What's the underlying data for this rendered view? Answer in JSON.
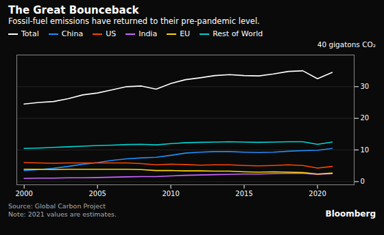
{
  "chart_data": {
    "type": "line",
    "title": "The Great Bounceback",
    "subtitle": "Fossil-fuel emissions have returned to their pre-pandemic level.",
    "ylabel": "40 gigatons CO₂",
    "annotations": [
      "Source: Global Carbon Project",
      "Note: 2021 values are estimates.",
      "Bloomberg"
    ],
    "x": [
      2000,
      2001,
      2002,
      2003,
      2004,
      2005,
      2006,
      2007,
      2008,
      2009,
      2010,
      2011,
      2012,
      2013,
      2014,
      2015,
      2016,
      2017,
      2018,
      2019,
      2020,
      2021
    ],
    "series": [
      {
        "name": "Total",
        "color": "#ffffff",
        "values": [
          24.5,
          25.0,
          25.3,
          26.2,
          27.4,
          28.0,
          29.0,
          30.0,
          30.2,
          29.2,
          31.0,
          32.2,
          32.8,
          33.5,
          33.8,
          33.5,
          33.4,
          34.0,
          34.8,
          35.0,
          32.5,
          34.5
        ]
      },
      {
        "name": "China",
        "color": "#1e90ff",
        "values": [
          3.5,
          3.8,
          4.2,
          4.8,
          5.5,
          6.0,
          6.7,
          7.2,
          7.5,
          7.7,
          8.3,
          9.0,
          9.3,
          9.5,
          9.5,
          9.3,
          9.2,
          9.3,
          9.6,
          9.8,
          9.9,
          10.5
        ]
      },
      {
        "name": "US",
        "color": "#ff4500",
        "values": [
          6.0,
          5.9,
          5.8,
          5.9,
          5.9,
          5.9,
          5.9,
          5.9,
          5.7,
          5.3,
          5.5,
          5.4,
          5.2,
          5.3,
          5.3,
          5.1,
          5.0,
          5.1,
          5.3,
          5.1,
          4.3,
          4.8
        ]
      },
      {
        "name": "India",
        "color": "#cc66ff",
        "values": [
          1.0,
          1.1,
          1.1,
          1.2,
          1.2,
          1.3,
          1.4,
          1.5,
          1.6,
          1.6,
          1.8,
          2.0,
          2.1,
          2.2,
          2.3,
          2.4,
          2.4,
          2.5,
          2.6,
          2.6,
          2.3,
          2.5
        ]
      },
      {
        "name": "EU",
        "color": "#ffd700",
        "values": [
          3.9,
          3.9,
          3.8,
          3.9,
          3.9,
          3.9,
          3.9,
          3.9,
          3.8,
          3.5,
          3.5,
          3.4,
          3.4,
          3.3,
          3.3,
          3.1,
          3.0,
          3.1,
          3.0,
          2.9,
          2.4,
          2.7
        ]
      },
      {
        "name": "Rest of World",
        "color": "#00d4d4",
        "values": [
          10.5,
          10.6,
          10.8,
          11.0,
          11.2,
          11.4,
          11.5,
          11.7,
          11.8,
          11.6,
          12.0,
          12.3,
          12.4,
          12.5,
          12.6,
          12.5,
          12.4,
          12.5,
          12.6,
          12.6,
          11.8,
          12.5
        ]
      }
    ],
    "xlim": [
      1999.5,
      2022.5
    ],
    "xticks": [
      2000,
      2005,
      2010,
      2015,
      2020
    ],
    "ylim": [
      -1,
      40
    ],
    "yticks": [
      0,
      10,
      20,
      30
    ],
    "grid": true
  }
}
